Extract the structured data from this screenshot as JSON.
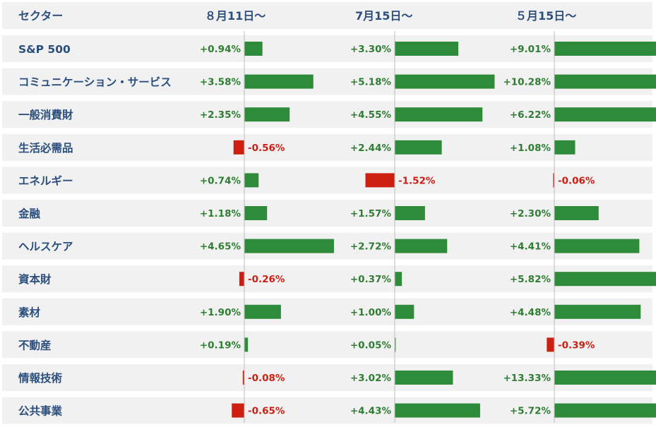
{
  "colors": {
    "header_text": "#2b4f7d",
    "sector_text": "#2b4f7d",
    "row_bg": "#f1f1f1",
    "header_bg": "#f1f1f1",
    "positive": "#2e8b3a",
    "negative": "#cc1f12",
    "positive_text": "#2e7d32",
    "negative_text": "#cc1f12",
    "axis": "#bdbdbd"
  },
  "chart_data": {
    "type": "bar",
    "header_label": "セクター",
    "periods": [
      "８月11日～",
      "7月15日～",
      "５月15日～"
    ],
    "categories": [
      "S&P 500",
      "コミュニケーション・サービス",
      "一般消費財",
      "生活必需品",
      "エネルギー",
      "金融",
      "ヘルスケア",
      "資本財",
      "素材",
      "不動産",
      "情報技術",
      "公共事業"
    ],
    "series": [
      {
        "name": "８月11日～",
        "values": [
          0.94,
          3.58,
          2.35,
          -0.56,
          0.74,
          1.18,
          4.65,
          -0.26,
          1.9,
          0.19,
          -0.08,
          -0.65
        ],
        "labels": [
          "+0.94%",
          "+3.58%",
          "+2.35%",
          "-0.56%",
          "+0.74%",
          "+1.18%",
          "+4.65%",
          "-0.26%",
          "+1.90%",
          "+0.19%",
          "-0.08%",
          "-0.65%"
        ]
      },
      {
        "name": "7月15日～",
        "values": [
          3.3,
          5.18,
          4.55,
          2.44,
          -1.52,
          1.57,
          2.72,
          0.37,
          1.0,
          0.05,
          3.02,
          4.43
        ],
        "labels": [
          "+3.30%",
          "+5.18%",
          "+4.55%",
          "+2.44%",
          "-1.52%",
          "+1.57%",
          "+2.72%",
          "+0.37%",
          "+1.00%",
          "+0.05%",
          "+3.02%",
          "+4.43%"
        ]
      },
      {
        "name": "５月15日～",
        "values": [
          9.01,
          10.28,
          6.22,
          1.08,
          -0.06,
          2.3,
          4.41,
          5.82,
          4.48,
          -0.39,
          13.33,
          5.72
        ],
        "labels": [
          "+9.01%",
          "+10.28%",
          "+6.22%",
          "+1.08%",
          "-0.06%",
          "+2.30%",
          "+4.41%",
          "+5.82%",
          "+4.48%",
          "-0.39%",
          "+13.33%",
          "+5.72%"
        ]
      }
    ],
    "grid": false,
    "legend": "none"
  }
}
